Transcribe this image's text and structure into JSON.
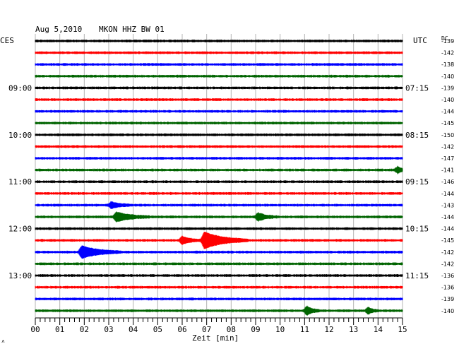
{
  "header": {
    "date": "Aug 5,2010",
    "station": "MKON HHZ BW 01",
    "left_timezone": "CES",
    "right_timezone": "UTC",
    "right_column_label": "DC"
  },
  "chart_data": {
    "type": "line",
    "title": "Aug 5,2010   MKON HHZ BW 01",
    "xlabel": "Zeit [min]",
    "xlim": [
      0,
      15
    ],
    "x_ticks": [
      "00",
      "01",
      "02",
      "03",
      "04",
      "05",
      "06",
      "07",
      "08",
      "09",
      "10",
      "11",
      "12",
      "13",
      "14",
      "15"
    ],
    "grid": true,
    "trace_colors": [
      "#000000",
      "#ff0000",
      "#0000ff",
      "#006400"
    ],
    "left_hour_labels": [
      "09:00",
      "10:00",
      "11:00",
      "12:00",
      "13:00"
    ],
    "right_hour_labels": [
      "07:15",
      "08:15",
      "09:15",
      "10:15",
      "11:15"
    ],
    "dc_offsets": [
      -139,
      -142,
      -138,
      -140,
      -139,
      -140,
      -144,
      -145,
      -150,
      -142,
      -147,
      -141,
      -146,
      -144,
      -143,
      -144,
      -144,
      -145,
      -142,
      -142,
      -136,
      -136,
      -139,
      -140
    ],
    "events": [
      {
        "trace": 11,
        "minute": 14.8,
        "amplitude": 4,
        "duration": 0.4
      },
      {
        "trace": 14,
        "minute": 3.1,
        "amplitude": 4,
        "duration": 0.8
      },
      {
        "trace": 15,
        "minute": 3.3,
        "amplitude": 6,
        "duration": 1.4
      },
      {
        "trace": 15,
        "minute": 9.1,
        "amplitude": 5,
        "duration": 0.8
      },
      {
        "trace": 17,
        "minute": 6.0,
        "amplitude": 5,
        "duration": 0.8
      },
      {
        "trace": 17,
        "minute": 6.9,
        "amplitude": 11,
        "duration": 1.8
      },
      {
        "trace": 18,
        "minute": 1.9,
        "amplitude": 8,
        "duration": 1.6
      },
      {
        "trace": 23,
        "minute": 11.1,
        "amplitude": 6,
        "duration": 0.5
      },
      {
        "trace": 23,
        "minute": 13.6,
        "amplitude": 4,
        "duration": 0.4
      }
    ]
  },
  "footer": {
    "corner_mark": "˄"
  }
}
